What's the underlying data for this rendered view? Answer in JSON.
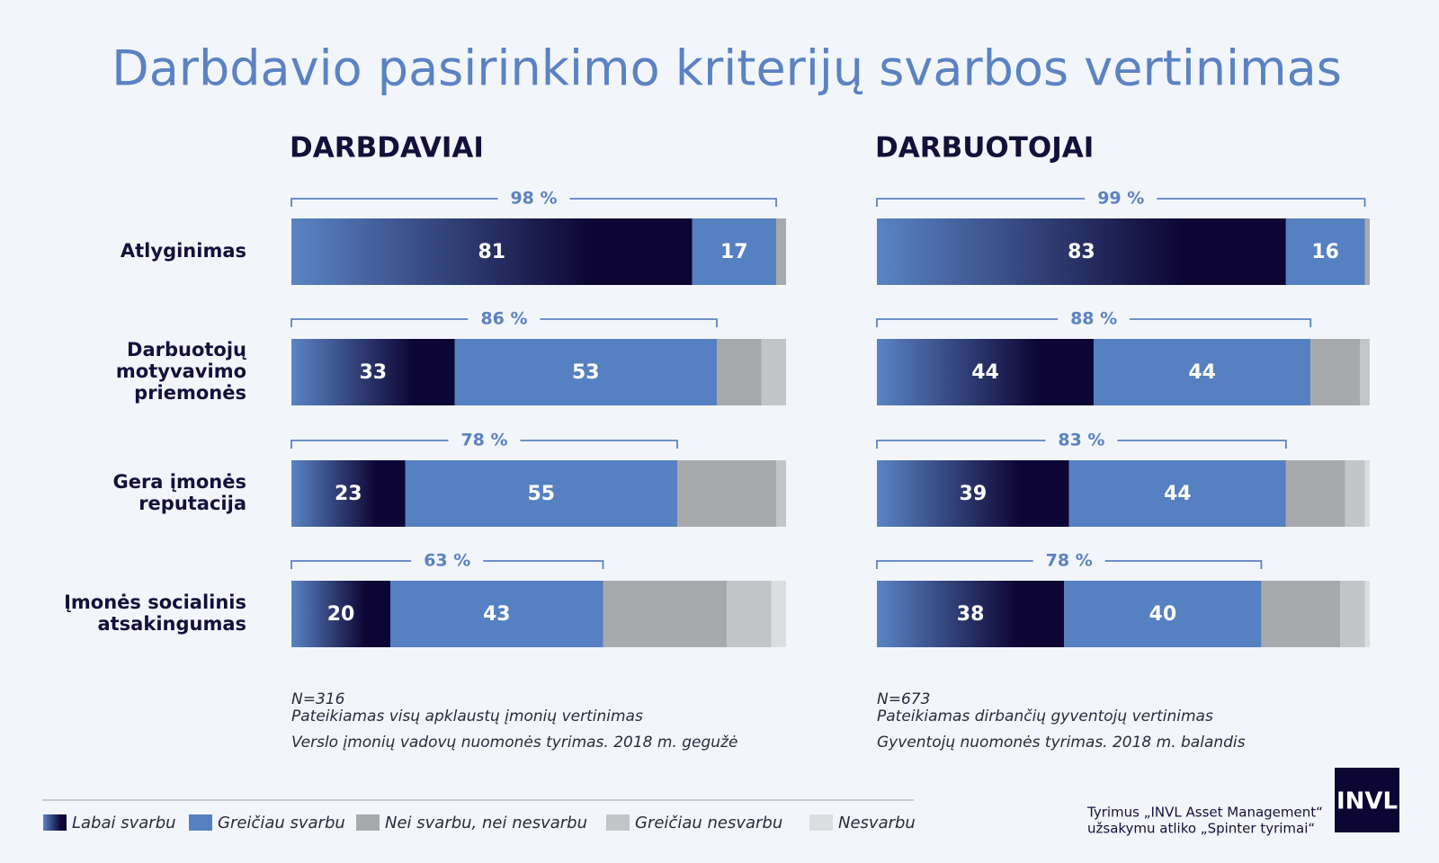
{
  "title": "Darbdavio pasirinkimo kriterijų svarbos vertinimas",
  "chart_data": [
    {
      "type": "stacked-bar",
      "title": "DARBDAVIAI",
      "categories": [
        "Atlyginimas",
        "Darbuotojų\nmotyvavimo\npriemonės",
        "Gera įmonės\nreputacija",
        "Įmonės socialinis\natsakingumas"
      ],
      "series": [
        {
          "name": "Labai svarbu",
          "color": "#0d0533",
          "gradient_from": "#5a84c4",
          "labels": true,
          "values": [
            81,
            33,
            23,
            20
          ]
        },
        {
          "name": "Greičiau svarbu",
          "color": "#5580c1",
          "labels": true,
          "values": [
            17,
            53,
            55,
            43
          ]
        },
        {
          "name": "Nei svarbu, nei nesvarbu",
          "color": "#a8a9ad",
          "values": [
            2,
            9,
            20,
            25
          ]
        },
        {
          "name": "Greičiau nesvarbu",
          "color": "#c4c5c8",
          "values": [
            0,
            5,
            2,
            9
          ]
        },
        {
          "name": "Nesvarbu",
          "color": "#dcdde0",
          "values": [
            0,
            0,
            0,
            3
          ]
        }
      ],
      "totals": {
        "values": [
          98,
          86,
          78,
          63
        ],
        "value_labels": [
          "98 %",
          "86 %",
          "78 %",
          "63 %"
        ]
      },
      "xlim": [
        0,
        100
      ],
      "notes": [
        "N=316",
        "Pateikiamas visų apklaustų įmonių vertinimas",
        "Verslo įmonių vadovų nuomonės tyrimas. 2018 m. gegužė"
      ]
    },
    {
      "type": "stacked-bar",
      "title": "DARBUOTOJAI",
      "series": [
        {
          "color": "#0d0533",
          "gradient_from": "#5a84c4",
          "labels": true,
          "values": [
            83,
            44,
            39,
            38
          ]
        },
        {
          "color": "#5580c1",
          "labels": true,
          "values": [
            16,
            44,
            44,
            40
          ]
        },
        {
          "color": "#a8a9ad",
          "values": [
            1,
            10,
            12,
            16
          ]
        },
        {
          "color": "#c4c5c8",
          "values": [
            0,
            2,
            4,
            5
          ]
        },
        {
          "color": "#dcdde0",
          "values": [
            0,
            0,
            1,
            1
          ]
        }
      ],
      "totals": {
        "values": [
          99,
          88,
          83,
          78
        ],
        "value_labels": [
          "99 %",
          "88 %",
          "83 %",
          "78 %"
        ]
      },
      "xlim": [
        0,
        100
      ],
      "notes": [
        "N=673",
        "Pateikiamas dirbančių gyventojų vertinimas",
        "Gyventojų nuomonės tyrimas. 2018 m. balandis"
      ]
    }
  ],
  "credits": [
    "Tyrimus „INVL Asset Management“",
    "užsakymu atliko „Spinter tyrimai“"
  ],
  "logo": "INVL"
}
